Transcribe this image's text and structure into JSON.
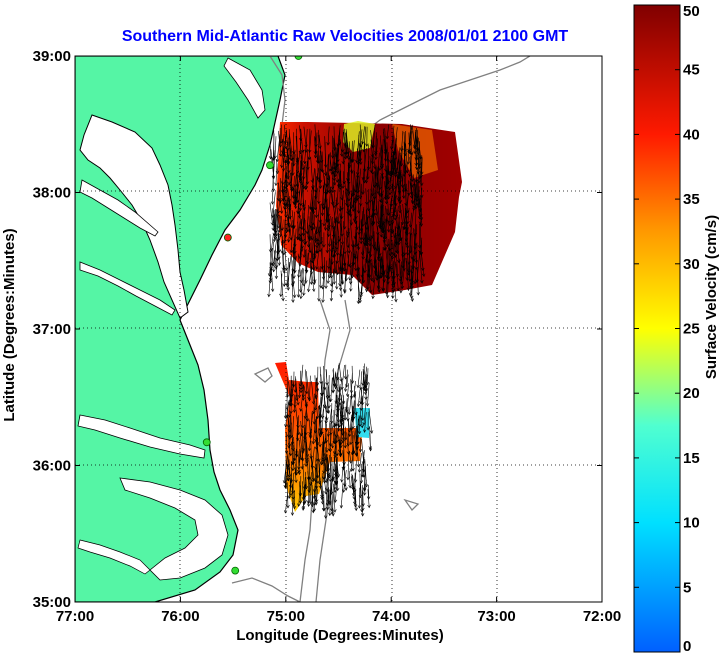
{
  "chart_data": {
    "type": "map",
    "title": "Southern Mid-Atlantic Raw Velocities 2008/01/01 2100 GMT",
    "xlabel": "Longitude (Degrees:Minutes)",
    "ylabel": "Latitude (Degrees:Minutes)",
    "xlim": [
      -77,
      -72
    ],
    "ylim": [
      35,
      39
    ],
    "x_ticks": [
      {
        "value": -77,
        "label": "77:00"
      },
      {
        "value": -76,
        "label": "76:00"
      },
      {
        "value": -75,
        "label": "75:00"
      },
      {
        "value": -74,
        "label": "74:00"
      },
      {
        "value": -73,
        "label": "73:00"
      },
      {
        "value": -72,
        "label": "72:00"
      }
    ],
    "y_ticks": [
      {
        "value": 35,
        "label": "35:00"
      },
      {
        "value": 36,
        "label": "36:00"
      },
      {
        "value": 37,
        "label": "37:00"
      },
      {
        "value": 38,
        "label": "38:00"
      },
      {
        "value": 39,
        "label": "39:00"
      }
    ],
    "grid": "dotted",
    "colorbar": {
      "label": "Surface Velocity (cm/s)",
      "range": [
        0,
        50
      ],
      "ticks": [
        "0",
        "5",
        "10",
        "15",
        "20",
        "25",
        "30",
        "35",
        "40",
        "45",
        "50"
      ]
    },
    "land_color": "#55f5a5",
    "water_color": "#ffffff",
    "coastline_color": "#000000",
    "bathymetry_color": "#808080",
    "stations": [
      {
        "lon": -74.88,
        "lat": 39.0,
        "color": "#33dd33"
      },
      {
        "lon": -75.15,
        "lat": 38.2,
        "color": "#33dd33"
      },
      {
        "lon": -75.55,
        "lat": 37.67,
        "color": "#ff2020"
      },
      {
        "lon": -75.75,
        "lat": 36.17,
        "color": "#33dd33"
      },
      {
        "lon": -75.48,
        "lat": 35.23,
        "color": "#33dd33"
      }
    ],
    "regions": [
      {
        "name": "north",
        "lon_range": [
          -75.15,
          -73.7
        ],
        "lat_range": [
          37.4,
          38.5
        ],
        "typical_speed": 48
      },
      {
        "name": "south",
        "lon_range": [
          -75.0,
          -74.2
        ],
        "lat_range": [
          35.8,
          36.75
        ],
        "typical_speed": 42
      }
    ]
  }
}
